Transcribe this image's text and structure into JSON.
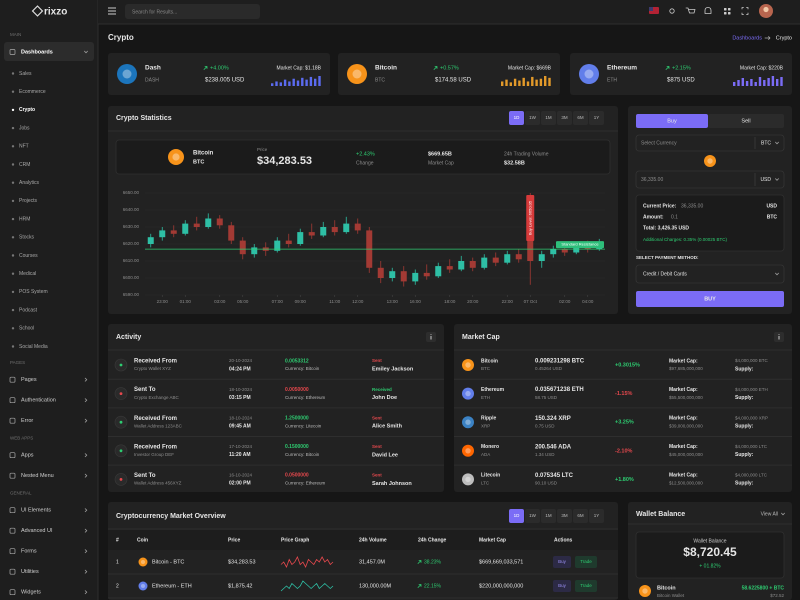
{
  "sidebar": {
    "logo": "rixzo",
    "sections": [
      {
        "label": "MAIN",
        "items": [
          {
            "label": "Dashboards",
            "children": [
              "Sales",
              "Ecommerce",
              "Crypto",
              "Jobs",
              "NFT",
              "CRM",
              "Analytics",
              "Projects",
              "HRM",
              "Stocks",
              "Courses",
              "Medical",
              "POS System",
              "Podcast",
              "School",
              "Social Media"
            ]
          }
        ]
      },
      {
        "label": "PAGES",
        "items": [
          {
            "label": "Pages"
          },
          {
            "label": "Authentication"
          },
          {
            "label": "Error"
          }
        ]
      },
      {
        "label": "WEB APPS",
        "items": [
          {
            "label": "Apps"
          },
          {
            "label": "Nested Menu"
          }
        ]
      },
      {
        "label": "GENERAL",
        "items": [
          {
            "label": "UI Elements"
          },
          {
            "label": "Advanced UI"
          },
          {
            "label": "Forms"
          },
          {
            "label": "Utilities"
          },
          {
            "label": "Widgets"
          }
        ]
      }
    ]
  },
  "header": {
    "search": "Search for Results..."
  },
  "page": {
    "title": "Crypto",
    "breadcrumb": [
      "Dashboards",
      "Crypto"
    ]
  },
  "tickers": [
    {
      "name": "Dash",
      "symbol": "DASH",
      "change": "+4.00%",
      "market_cap": "Market Cap: $1.18B",
      "price": "$238.005 USD",
      "color": "#1c75bc",
      "bar_color": "#5b6bf0",
      "bars": [
        3,
        5,
        4,
        7,
        5,
        8,
        6,
        9,
        7,
        10,
        8,
        11
      ]
    },
    {
      "name": "Bitcoin",
      "symbol": "BTC",
      "change": "+0.57%",
      "market_cap": "Market Cap: $669B",
      "price": "$174.58 USD",
      "color": "#f7931a",
      "bar_color": "#e39a2a",
      "bars": [
        5,
        7,
        4,
        8,
        6,
        9,
        5,
        10,
        7,
        8,
        11,
        9
      ]
    },
    {
      "name": "Ethereum",
      "symbol": "ETH",
      "change": "+2.15%",
      "market_cap": "Market Cap: $220B",
      "price": "$875 USD",
      "color": "#627eea",
      "bar_color": "#7b6cf6",
      "bars": [
        4,
        6,
        8,
        5,
        7,
        4,
        9,
        6,
        8,
        10,
        7,
        9
      ]
    }
  ],
  "stats": {
    "title": "Crypto Statistics",
    "tabs": [
      "1D",
      "1W",
      "1M",
      "3M",
      "6M",
      "1Y"
    ],
    "coin": "Bitcoin",
    "symbol": "BTC",
    "price_label": "Price",
    "price": "$34,283.53",
    "change": "+2.43%",
    "change_label": "Change",
    "market_cap": "$669.65B",
    "market_cap_label": "Market Cap",
    "volume_label": "24h Trading Volume",
    "volume": "$32.58B"
  },
  "chart_data": {
    "type": "candlestick",
    "x": [
      null,
      "23:00",
      null,
      "01:00",
      null,
      null,
      "03:00",
      null,
      "05:00",
      null,
      null,
      "07:00",
      null,
      "09:00",
      null,
      null,
      "11:00",
      null,
      "12:00",
      null,
      null,
      "13:00",
      null,
      "16:00",
      null,
      null,
      "18:00",
      null,
      "20:00",
      null,
      null,
      "22:00",
      null,
      "07 Oct",
      null,
      null,
      "02:00",
      null,
      "04:00",
      null
    ],
    "open": [
      6620,
      6624,
      6628,
      6626,
      6632,
      6630,
      6635,
      6631,
      6622,
      6614,
      6618,
      6616,
      6622,
      6620,
      6627,
      6625,
      6630,
      6627,
      6632,
      6628,
      6606,
      6600,
      6604,
      6598,
      6603,
      6601,
      6607,
      6605,
      6610,
      6606,
      6612,
      6609,
      6614,
      6646,
      6610,
      6614,
      6617,
      6615,
      6619,
      6617
    ],
    "high": [
      6626,
      6630,
      6631,
      6634,
      6636,
      6638,
      6637,
      6633,
      6624,
      6620,
      6621,
      6624,
      6626,
      6629,
      6632,
      6633,
      6634,
      6636,
      6635,
      6630,
      6610,
      6606,
      6607,
      6605,
      6608,
      6609,
      6611,
      6613,
      6612,
      6614,
      6615,
      6616,
      6617,
      6650,
      6616,
      6619,
      6620,
      6621,
      6622,
      6623
    ],
    "low": [
      6618,
      6622,
      6624,
      6625,
      6628,
      6629,
      6629,
      6620,
      6611,
      6612,
      6613,
      6615,
      6618,
      6619,
      6623,
      6624,
      6625,
      6626,
      6626,
      6603,
      6597,
      6598,
      6595,
      6596,
      6599,
      6600,
      6603,
      6604,
      6604,
      6605,
      6607,
      6608,
      6609,
      6596,
      6606,
      6612,
      6613,
      6614,
      6615,
      6616
    ],
    "close": [
      6624,
      6628,
      6626,
      6632,
      6630,
      6635,
      6631,
      6622,
      6614,
      6618,
      6616,
      6622,
      6620,
      6627,
      6625,
      6630,
      6627,
      6632,
      6628,
      6606,
      6600,
      6604,
      6598,
      6603,
      6601,
      6607,
      6605,
      6610,
      6606,
      6612,
      6609,
      6614,
      6611,
      6610,
      6614,
      6617,
      6615,
      6619,
      6617,
      6620
    ],
    "up_color": "#2ebfa5",
    "down_color": "#a33a34",
    "ylim": [
      6590,
      6650
    ],
    "yticks": [
      {
        "value": 6650,
        "label": "6650.00"
      },
      {
        "value": 6640,
        "label": "6640.00"
      },
      {
        "value": 6630,
        "label": "6630.00"
      },
      {
        "value": 6620,
        "label": "6620.00"
      },
      {
        "value": 6610,
        "label": "6610.00"
      },
      {
        "value": 6600,
        "label": "6600.00"
      },
      {
        "value": 6590,
        "label": "6590.00"
      }
    ],
    "grid": true,
    "resistance": 6617,
    "resistance_label": "Standard Resistance",
    "buy_level_label": "Buy Level: 6650.05"
  },
  "trade": {
    "tabs": [
      "Buy",
      "Sell"
    ],
    "currency_placeholder": "Select Currency",
    "currency": "BTC",
    "amount_value": "36,335.00",
    "amount_currency": "USD",
    "current_price_label": "Current Price:",
    "current_price": "36,335.00",
    "current_price_unit": "USD",
    "amount_label": "Amount:",
    "amount": "0.1",
    "amount_unit": "BTC",
    "total": "Total: 3,426.35 USD",
    "charges": "Additional Charges: 0.35% (0.00025 BTC)",
    "payment_label": "SELECT PAYMENT METHOD:",
    "payment": "Credit / Debit Cards",
    "button": "BUY"
  },
  "activity": {
    "title": "Activity",
    "rows": [
      {
        "title": "Received From",
        "subtitle": "Crypto Wallet XYZ",
        "date": "20-10-2024",
        "time": "04:24 PM",
        "amount": "0.0053312",
        "amount_color": "#2ecc71",
        "currency": "Currency: Bitcoin",
        "status": "Sent",
        "status_color": "#e5484d",
        "name": "Emiley Jackson"
      },
      {
        "title": "Sent To",
        "subtitle": "Crypto Exchange ABC",
        "date": "18-10-2024",
        "time": "03:15 PM",
        "amount": "0.0050000",
        "amount_color": "#e5484d",
        "currency": "Currency: Ethereum",
        "status": "Received",
        "status_color": "#2ecc71",
        "name": "John Doe"
      },
      {
        "title": "Received From",
        "subtitle": "Wallet Address 123ABC",
        "date": "18-10-2024",
        "time": "09:45 AM",
        "amount": "1.2500000",
        "amount_color": "#2ecc71",
        "currency": "Currency: Litecoin",
        "status": "Sent",
        "status_color": "#e5484d",
        "name": "Alice Smith"
      },
      {
        "title": "Received From",
        "subtitle": "Investor Group DEF",
        "date": "17-10-2024",
        "time": "11:20 AM",
        "amount": "0.1500000",
        "amount_color": "#2ecc71",
        "currency": "Currency: Bitcoin",
        "status": "Sent",
        "status_color": "#e5484d",
        "name": "David Lee"
      },
      {
        "title": "Sent To",
        "subtitle": "Wallet Address 456XYZ",
        "date": "16-10-2024",
        "time": "02:00 PM",
        "amount": "0.0500000",
        "amount_color": "#e5484d",
        "currency": "Currency: Ethereum",
        "status": "Sent",
        "status_color": "#e5484d",
        "name": "Sarah Johnson"
      }
    ]
  },
  "market_cap": {
    "title": "Market Cap",
    "rows": [
      {
        "name": "Bitcoin",
        "symbol": "BTC",
        "amount": "0.009231298 BTC",
        "usd": "0.45264 USD",
        "change": "+0.3015%",
        "cap_label": "Market Cap:",
        "cap": "$97,685,000,000",
        "supply_value": "$4,000,000 BTC",
        "supply_label": "Supply:",
        "color": "#f7931a"
      },
      {
        "name": "Ethereum",
        "symbol": "ETH",
        "amount": "0.035671238 ETH",
        "usd": "58.75 USD",
        "change": "-1.15%",
        "cap_label": "Market Cap:",
        "cap": "$55,500,000,000",
        "supply_value": "$4,000,000 ETH",
        "supply_label": "Supply:",
        "color": "#627eea"
      },
      {
        "name": "Ripple",
        "symbol": "XRP",
        "amount": "150.324 XRP",
        "usd": "0.75 USD",
        "change": "+3.25%",
        "cap_label": "Market Cap:",
        "cap": "$39,000,000,000",
        "supply_value": "$4,000,000 XRP",
        "supply_label": "Supply:",
        "color": "#3b82c4"
      },
      {
        "name": "Monero",
        "symbol": "ADA",
        "amount": "200.546 ADA",
        "usd": "1.34 USD",
        "change": "-2.10%",
        "cap_label": "Market Cap:",
        "cap": "$45,000,000,000",
        "supply_value": "$4,000,000 LTC",
        "supply_label": "Supply:",
        "color": "#ff6600"
      },
      {
        "name": "Litecoin",
        "symbol": "LTC",
        "amount": "0.075345 LTC",
        "usd": "90.10 USD",
        "change": "+1.80%",
        "cap_label": "Market Cap:",
        "cap": "$12,500,000,000",
        "supply_value": "$4,000,000 LTC",
        "supply_label": "Supply:",
        "color": "#bdbdbd"
      }
    ]
  },
  "overview": {
    "title": "Cryptocurrency Market Overview",
    "tabs": [
      "1D",
      "1W",
      "1M",
      "3M",
      "6M",
      "1Y"
    ],
    "columns": [
      "#",
      "Coin",
      "Price",
      "Price Graph",
      "24h Volume",
      "24h Change",
      "Market Cap",
      "Actions"
    ],
    "rows": [
      {
        "rank": 1,
        "coin": "Bitcoin - BTC",
        "price": "$34,283.53",
        "graph": [
          5,
          6,
          4,
          7,
          5,
          6,
          8,
          5,
          6,
          4,
          7,
          6,
          5,
          7,
          6,
          8,
          6,
          7,
          5,
          6
        ],
        "graph_color": "#e5484d",
        "volume": "31,457.0M",
        "change": "38.23%",
        "market_cap": "$669,669,033,571",
        "actions": [
          "Buy",
          "Trade"
        ],
        "color": "#f7931a"
      },
      {
        "rank": 2,
        "coin": "Ethereum - ETH",
        "price": "$1,875.42",
        "graph": [
          4,
          5,
          6,
          5,
          7,
          6,
          5,
          6,
          8,
          7,
          6,
          5,
          6,
          7,
          5,
          6,
          7,
          6,
          5,
          6
        ],
        "graph_color": "#2ebfa5",
        "volume": "130,000.00M",
        "change": "22.15%",
        "market_cap": "$220,000,000,000",
        "actions": [
          "Buy",
          "Trade"
        ],
        "color": "#627eea"
      }
    ]
  },
  "wallet": {
    "title": "Wallet Balance",
    "view_all": "View All",
    "balance_label": "Wallet Balance",
    "balance": "$8,720.45",
    "balance_change": "+ 01.82%",
    "coin": "Bitcoin",
    "coin_sub": "Bitcoin Wallet",
    "coin_amount": "58.6225800 + BTC",
    "coin_usd": "$72.52"
  }
}
